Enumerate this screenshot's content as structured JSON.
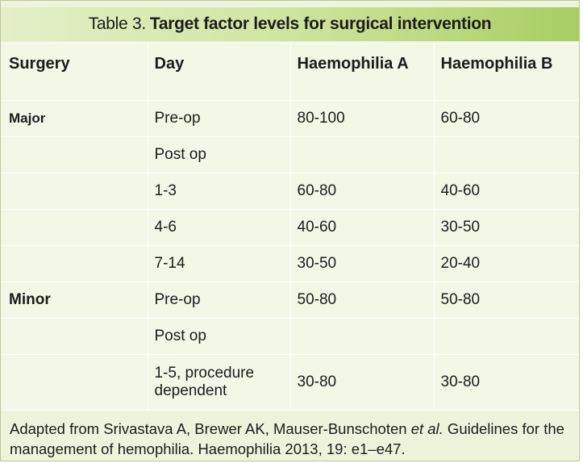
{
  "title": {
    "prefix": "Table 3.",
    "text": "Target factor levels for surgical intervention"
  },
  "columns": [
    "Surgery",
    "Day",
    "Haemophilia A",
    "Haemophilia B"
  ],
  "rows": [
    {
      "surgery": "Major",
      "day": "Pre-op",
      "haemophilia_a": "80-100",
      "haemophilia_b": "60-80"
    },
    {
      "surgery": "",
      "day": "Post op",
      "haemophilia_a": "",
      "haemophilia_b": ""
    },
    {
      "surgery": "",
      "day": "1-3",
      "haemophilia_a": "60-80",
      "haemophilia_b": "40-60"
    },
    {
      "surgery": "",
      "day": "4-6",
      "haemophilia_a": "40-60",
      "haemophilia_b": "30-50"
    },
    {
      "surgery": "",
      "day": "7-14",
      "haemophilia_a": "30-50",
      "haemophilia_b": "20-40"
    },
    {
      "surgery": "Minor",
      "day": "Pre-op",
      "haemophilia_a": "50-80",
      "haemophilia_b": "50-80"
    },
    {
      "surgery": "",
      "day": "Post op",
      "haemophilia_a": "",
      "haemophilia_b": ""
    },
    {
      "surgery": "",
      "day": "1-5, procedure dependent",
      "haemophilia_a": "30-80",
      "haemophilia_b": "30-80"
    }
  ],
  "footnote": {
    "before": "Adapted from Srivastava A, Brewer AK, Mauser-Bunschoten ",
    "italic": "et al.",
    "after": " Guidelines for the management of hemophilia. Haemophilia 2013, 19: e1–e47."
  },
  "colors": {
    "panel_background": "#eef4dc",
    "title_gradient_end": "#a9cd62",
    "grid_lines": "#ffffff"
  }
}
